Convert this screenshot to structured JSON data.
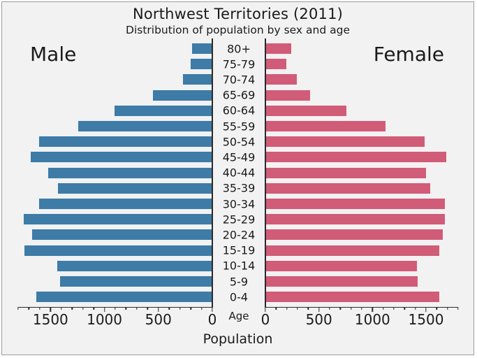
{
  "title": "Northwest Territories (2011)",
  "subtitle": "Distribution of population by sex and age",
  "left_panel_label": "Male",
  "right_panel_label": "Female",
  "age_axis_label": "Age",
  "x_axis_label": "Population",
  "colors": {
    "male_bar": "#3e7ba6",
    "female_bar": "#d05c78",
    "background": "#f2f2f2",
    "axis": "#2a2a2a",
    "text": "#1a1a1a"
  },
  "chart_data": {
    "type": "bar",
    "variant": "population-pyramid",
    "title": "Northwest Territories (2011)",
    "subtitle": "Distribution of population by sex and age",
    "xlabel": "Population",
    "center_axis_label": "Age",
    "categories_top_to_bottom": [
      "80+",
      "75-79",
      "70-74",
      "65-69",
      "60-64",
      "55-59",
      "50-54",
      "45-49",
      "40-44",
      "35-39",
      "30-34",
      "25-29",
      "20-24",
      "15-19",
      "10-14",
      "5-9",
      "0-4"
    ],
    "series": [
      {
        "name": "Male",
        "side": "left",
        "values": [
          195,
          205,
          280,
          555,
          910,
          1250,
          1615,
          1690,
          1530,
          1440,
          1610,
          1755,
          1680,
          1750,
          1445,
          1420,
          1635
        ]
      },
      {
        "name": "Female",
        "side": "right",
        "values": [
          250,
          200,
          300,
          425,
          760,
          1130,
          1495,
          1695,
          1505,
          1545,
          1685,
          1685,
          1660,
          1630,
          1420,
          1430,
          1630
        ]
      }
    ],
    "xlim": [
      0,
      1800
    ],
    "xticks": [
      0,
      500,
      1000,
      1500
    ],
    "minor_tick_step": 100,
    "grid": false,
    "legend": "none"
  }
}
